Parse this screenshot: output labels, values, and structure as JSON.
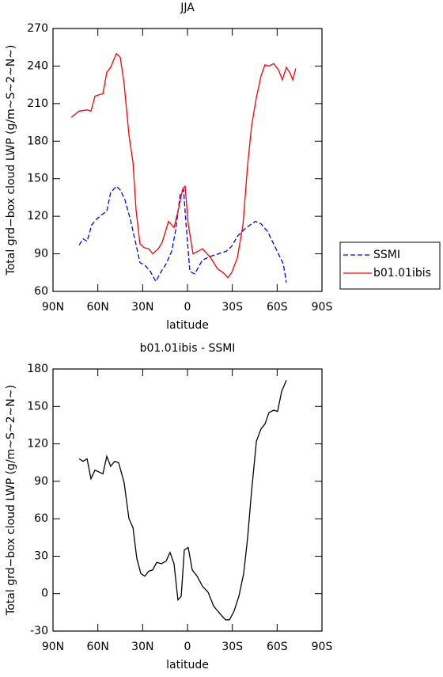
{
  "chart_data": [
    {
      "type": "line",
      "title": "JJA",
      "xlabel": "latitude",
      "ylabel": "Total grd−box cloud LWP (g/m~S~2~N~)",
      "xlim": [
        90,
        -90
      ],
      "xticks": [
        {
          "value": 90,
          "label": "90N"
        },
        {
          "value": 60,
          "label": "60N"
        },
        {
          "value": 30,
          "label": "30N"
        },
        0,
        {
          "value": -30,
          "label": "30S"
        },
        {
          "value": -60,
          "label": "60S"
        },
        {
          "value": -90,
          "label": "90S"
        }
      ],
      "ylim": [
        60,
        270
      ],
      "yticks": [
        60,
        90,
        120,
        150,
        180,
        210,
        240,
        270
      ],
      "legend": "outside-right",
      "series": [
        {
          "name": "SSMI",
          "color": "#0000ff",
          "line_style": "dashed",
          "x": [
            72.5,
            69.9,
            67.2,
            64.1,
            61.4,
            57.7,
            54,
            51.4,
            47.6,
            45,
            41.8,
            38.1,
            34.9,
            31.8,
            28.6,
            24.9,
            21.2,
            17.5,
            14.3,
            10.6,
            7.9,
            4.8,
            2.6,
            1.1,
            -1.6,
            -4.8,
            -10,
            -15.4,
            -20.6,
            -25.9,
            -29.6,
            -33.4,
            -37.6,
            -42.9,
            -45.5,
            -49.2,
            -53.5,
            -57.2,
            -60.9,
            -64.1,
            -66.2
          ],
          "values": [
            97,
            102,
            100,
            113,
            117,
            121,
            124,
            139,
            144,
            141,
            133,
            117,
            100,
            83,
            81,
            76,
            68,
            76,
            82,
            92,
            109,
            138,
            141,
            116,
            76,
            74,
            85,
            88,
            90,
            92,
            96,
            104,
            109,
            114,
            116,
            114,
            108,
            99,
            90,
            82,
            67
          ]
        },
        {
          "name": "b01.01ibis",
          "color": "#ff0000",
          "line_style": "solid",
          "x": [
            77.8,
            72.5,
            67.2,
            64.6,
            61.9,
            56.6,
            54,
            51.4,
            47.6,
            45,
            42.4,
            39.2,
            36.5,
            34.4,
            31.8,
            29.1,
            25.9,
            23.3,
            19.6,
            17,
            12.7,
            9,
            5.8,
            3.2,
            1.6,
            -0.5,
            -3.7,
            -6.9,
            -10,
            -15.4,
            -20.1,
            -23.8,
            -27,
            -29.6,
            -33.4,
            -37.1,
            -40.2,
            -42.9,
            -46.1,
            -49.2,
            -51.9,
            -54.5,
            -57.7,
            -60.9,
            -63.5,
            -66.2,
            -68.8,
            -70.4,
            -72.5
          ],
          "values": [
            199,
            204,
            205,
            204,
            216,
            218,
            235,
            239,
            250,
            247,
            226,
            185,
            163,
            125,
            98,
            95,
            94,
            90,
            94,
            99,
            116,
            111,
            127,
            142,
            144,
            114,
            90,
            92,
            94,
            87,
            78,
            75,
            71,
            75,
            87,
            113,
            160,
            192,
            215,
            232,
            241,
            240,
            242,
            237,
            229,
            239,
            234,
            229,
            238
          ]
        }
      ]
    },
    {
      "type": "line",
      "title": "b01.01ibis - SSMI",
      "xlabel": "latitude",
      "ylabel": "Total grd−box cloud LWP (g/m~S~2~N~)",
      "xlim": [
        90,
        -90
      ],
      "xticks": [
        {
          "value": 90,
          "label": "90N"
        },
        {
          "value": 60,
          "label": "60N"
        },
        {
          "value": 30,
          "label": "30N"
        },
        0,
        {
          "value": -30,
          "label": "30S"
        },
        {
          "value": -60,
          "label": "60S"
        },
        {
          "value": -90,
          "label": "90S"
        }
      ],
      "ylim": [
        -30,
        180
      ],
      "yticks": [
        -30,
        0,
        30,
        60,
        90,
        120,
        150,
        180
      ],
      "series": [
        {
          "color": "#000000",
          "line_style": "solid",
          "x": [
            72.5,
            69.9,
            67.2,
            64.6,
            61.9,
            56.6,
            54,
            51.4,
            48.7,
            46.1,
            42.4,
            39.2,
            36.5,
            33.9,
            31.2,
            28.6,
            25.9,
            23.3,
            20.6,
            17.5,
            14.3,
            11.7,
            9,
            6.4,
            4.2,
            2.1,
            -0.5,
            -3.2,
            -6.4,
            -10,
            -13.8,
            -17.5,
            -21.7,
            -25.4,
            -28.1,
            -31.2,
            -34.4,
            -37.6,
            -40.2,
            -42.9,
            -46.1,
            -49.2,
            -51.9,
            -54.5,
            -57.7,
            -60.3,
            -63,
            -66.2
          ],
          "values": [
            108,
            106,
            108,
            92,
            99,
            96,
            110,
            102,
            106,
            105,
            89,
            60,
            53,
            28,
            16,
            14,
            18,
            19,
            25,
            24,
            26,
            33,
            24,
            -5,
            -2,
            35,
            37,
            19,
            14,
            6,
            1,
            -10,
            -16,
            -21,
            -21,
            -14,
            -2,
            16,
            44,
            82,
            122,
            132,
            136,
            145,
            147,
            146,
            162,
            171
          ]
        }
      ]
    }
  ]
}
